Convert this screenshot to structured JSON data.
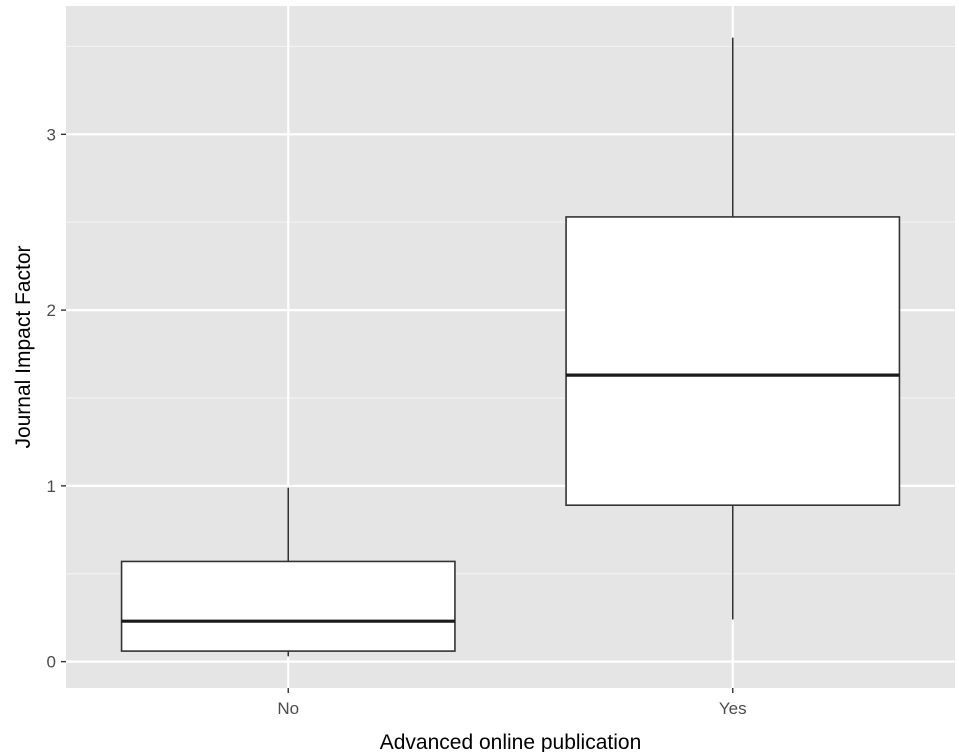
{
  "chart_data": {
    "type": "boxplot",
    "xlabel": "Advanced online publication",
    "ylabel": "Journal Impact Factor",
    "ylim": [
      -0.15,
      3.73
    ],
    "yticks": [
      0,
      1,
      2,
      3
    ],
    "ytick_labels": [
      "0",
      "1",
      "2",
      "3"
    ],
    "grid": true,
    "legend": "none",
    "categories": [
      "No",
      "Yes"
    ],
    "boxes": [
      {
        "category": "No",
        "whisker_low": 0.03,
        "q1": 0.06,
        "median": 0.23,
        "q3": 0.57,
        "whisker_high": 0.99
      },
      {
        "category": "Yes",
        "whisker_low": 0.24,
        "q1": 0.89,
        "median": 1.63,
        "q3": 2.53,
        "whisker_high": 3.55
      }
    ],
    "colors": {
      "panel_background": "#e5e5e5",
      "grid_major": "#ffffff",
      "grid_minor": "#f2f2f2",
      "box_fill": "#ffffff",
      "box_stroke": "#333333"
    }
  }
}
